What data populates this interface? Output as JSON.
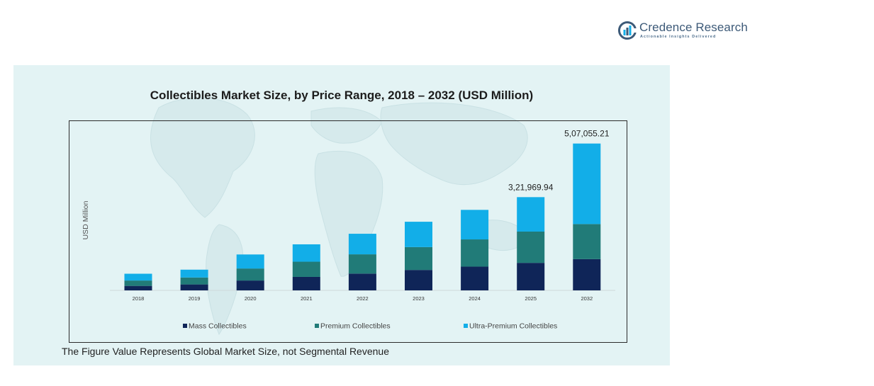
{
  "logo": {
    "name": "Credence Research",
    "tagline": "Actionable Insights Delivered"
  },
  "caption": "The Figure Value Represents Global Market Size, not Segmental Revenue",
  "colors": {
    "panel_bg": "#e3f3f4",
    "mass": "#0f2558",
    "premium": "#217b78",
    "ultra": "#12aee8"
  },
  "chart_data": {
    "type": "bar",
    "stacked": true,
    "title": "Collectibles  Market Size, by Price Range, 2018 – 2032 (USD Million)",
    "xlabel": "",
    "ylabel": "USD Million",
    "categories": [
      "2018",
      "2019",
      "2020",
      "2021",
      "2022",
      "2023",
      "2024",
      "2025",
      "2032"
    ],
    "series": [
      {
        "name": "Mass Collectibles",
        "color": "#0f2558",
        "values": [
          15500,
          20500,
          34000,
          46500,
          58000,
          70500,
          82000,
          95000,
          108000
        ]
      },
      {
        "name": "Premium Collectibles",
        "color": "#217b78",
        "values": [
          18500,
          24000,
          41500,
          52500,
          66500,
          79000,
          94000,
          108000,
          121000
        ]
      },
      {
        "name": "Ultra-Premium Collectibles",
        "color": "#12aee8",
        "values": [
          23500,
          27000,
          48500,
          60000,
          71000,
          87500,
          102000,
          118969.94,
          278055.21
        ]
      }
    ],
    "data_labels": [
      "",
      "",
      "",
      "",
      "",
      "",
      "",
      "3,21,969.94",
      "5,07,055.21"
    ],
    "ylim": [
      0,
      560000
    ],
    "grid": false,
    "legend_position": "bottom"
  }
}
